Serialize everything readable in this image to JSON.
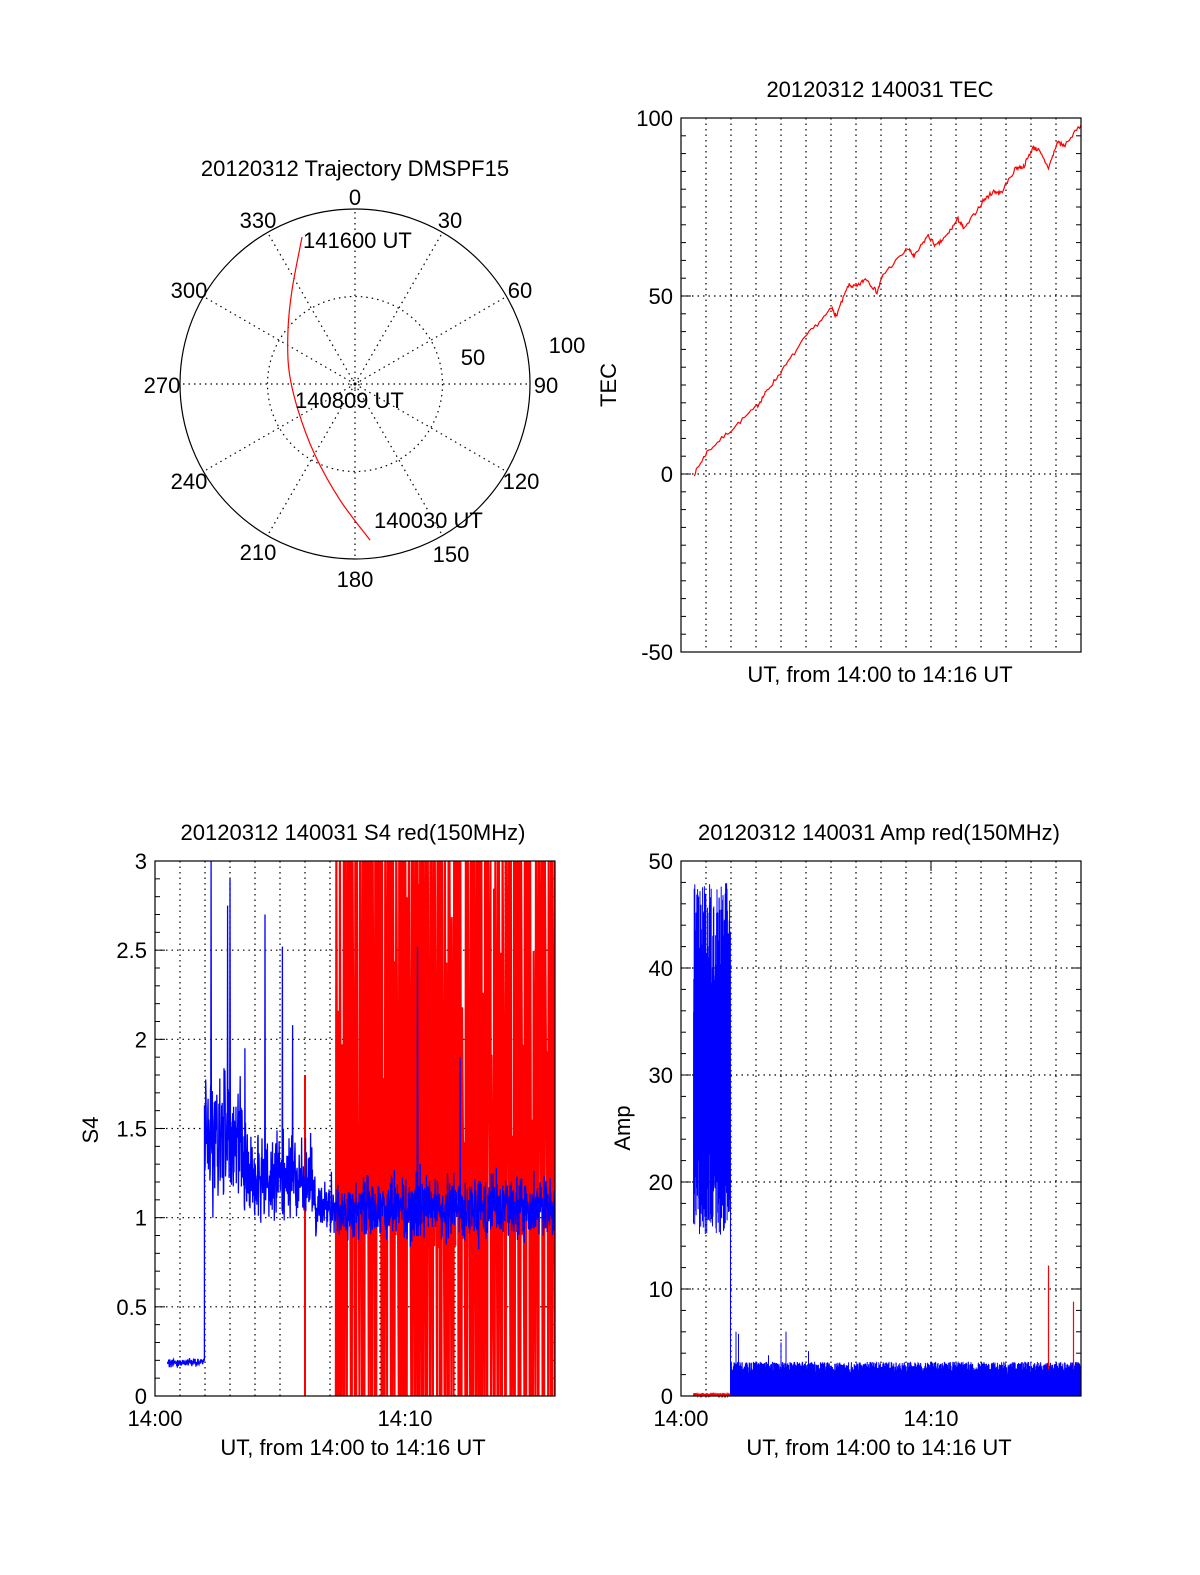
{
  "chart_data": [
    {
      "type": "polar",
      "title": "20120312 Trajectory DMSPF15",
      "rlim": [
        0,
        100
      ],
      "angle_labels": [
        "0",
        "30",
        "60",
        "90",
        "120",
        "150",
        "180",
        "210",
        "240",
        "270",
        "300",
        "330"
      ],
      "radial_labels": [
        "50",
        "100"
      ],
      "track": {
        "color": "#ff0000",
        "azimuth_deg": [
          174.5,
          187.4,
          209.4,
          245.5,
          282.0,
          308.9,
          326.2,
          340.2
        ],
        "r": [
          89.6,
          66.8,
          46.6,
          35.8,
          38.6,
          49.2,
          64.7,
          89.3
        ]
      },
      "annotations": [
        "141600 UT",
        "140809 UT",
        "140030 UT"
      ]
    },
    {
      "type": "line",
      "title": "20120312 140031 TEC",
      "xlabel": "UT, from 14:00 to 14:16 UT",
      "ylabel": "TEC",
      "xlim": [
        0,
        16
      ],
      "ylim": [
        -50,
        100
      ],
      "yticks": [
        "100",
        "50",
        "0",
        "-50"
      ],
      "grid": true,
      "series": [
        {
          "name": "TEC",
          "color": "#ff0000",
          "x": [
            0.53,
            1.04,
            2.04,
            3.04,
            3.4,
            4.04,
            5.04,
            6.04,
            6.2,
            6.7,
            7.04,
            7.4,
            7.84,
            8.08,
            9.08,
            9.33,
            9.87,
            10.2,
            10.6,
            11.08,
            11.33,
            12.08,
            12.5,
            12.8,
            13.4,
            13.7,
            14.08,
            14.3,
            14.7,
            15.08,
            15.3,
            16.0
          ],
          "y": [
            0,
            6.2,
            12.6,
            19,
            23,
            29,
            39,
            46.5,
            44.3,
            53,
            52.6,
            55,
            51,
            56,
            63.4,
            61,
            67,
            64,
            66.7,
            71.6,
            68.7,
            76.7,
            79.4,
            79,
            86,
            86.3,
            91.7,
            91,
            86,
            93.5,
            92,
            98
          ]
        }
      ]
    },
    {
      "type": "line",
      "title": "20120312 140031 S4 red(150MHz)",
      "xlabel": "UT, from 14:00 to 14:16 UT",
      "ylabel": "S4",
      "xlim": [
        0,
        16
      ],
      "ylim": [
        0,
        3
      ],
      "xticks": [
        "14:00",
        "14:10"
      ],
      "yticks": [
        "3",
        "2.5",
        "2",
        "1.5",
        "1",
        "0.5",
        "0"
      ],
      "grid": true,
      "series": [
        {
          "name": "S4 blue",
          "color": "#0000ff",
          "segments": [
            {
              "t": [
                0.5,
                1.98
              ],
              "mean": 0.19,
              "std": 0.015
            },
            {
              "t": [
                1.98,
                3.5
              ],
              "mean": 1.45,
              "std": 0.25
            },
            {
              "t": [
                3.5,
                6.3
              ],
              "mean": 1.22,
              "std": 0.17
            },
            {
              "t": [
                6.3,
                16.0
              ],
              "mean": 1.05,
              "std": 0.12
            }
          ],
          "spikes": [
            [
              2.25,
              3.0
            ],
            [
              2.9,
              2.75
            ],
            [
              3.0,
              2.9
            ],
            [
              4.4,
              2.7
            ],
            [
              5.1,
              2.52
            ],
            [
              3.6,
              1.95
            ],
            [
              5.5,
              2.08
            ],
            [
              10.5,
              2.52
            ],
            [
              12.2,
              1.9
            ]
          ]
        },
        {
          "name": "S4 red",
          "color": "#ff0000",
          "bursts": {
            "t": [
              7.2,
              16.0
            ],
            "count": 120,
            "low": 0,
            "high": 3
          },
          "spikes": [
            [
              6.0,
              1.8
            ]
          ]
        }
      ]
    },
    {
      "type": "line",
      "title": "20120312 140031 Amp red(150MHz)",
      "xlabel": "UT, from 14:00 to 14:16 UT",
      "ylabel": "Amp",
      "xlim": [
        0,
        16
      ],
      "ylim": [
        0,
        50
      ],
      "xticks": [
        "14:00",
        "14:10"
      ],
      "yticks": [
        "50",
        "40",
        "30",
        "20",
        "10",
        "0"
      ],
      "grid": true,
      "series": [
        {
          "name": "Amp blue",
          "color": "#0000ff",
          "segments": [
            {
              "t": [
                0.5,
                1.98
              ],
              "low": [
                15,
                27
              ],
              "high": [
                35,
                48
              ]
            },
            {
              "t": [
                1.98,
                16.0
              ],
              "low": [
                0,
                0
              ],
              "high": [
                1.8,
                3.2
              ]
            }
          ],
          "spikes": [
            [
              2.2,
              6.0
            ],
            [
              2.3,
              5.8
            ],
            [
              4.0,
              5.0
            ],
            [
              4.2,
              6.0
            ],
            [
              3.5,
              3.8
            ],
            [
              5.1,
              4.2
            ]
          ]
        },
        {
          "name": "Amp red",
          "color": "#ff0000",
          "segments": [
            {
              "t": [
                0.5,
                1.98
              ],
              "low": [
                0,
                0
              ],
              "high": [
                0.1,
                0.3
              ]
            }
          ],
          "spikes": [
            [
              14.7,
              12.2
            ],
            [
              15.7,
              8.8
            ]
          ]
        }
      ]
    }
  ]
}
